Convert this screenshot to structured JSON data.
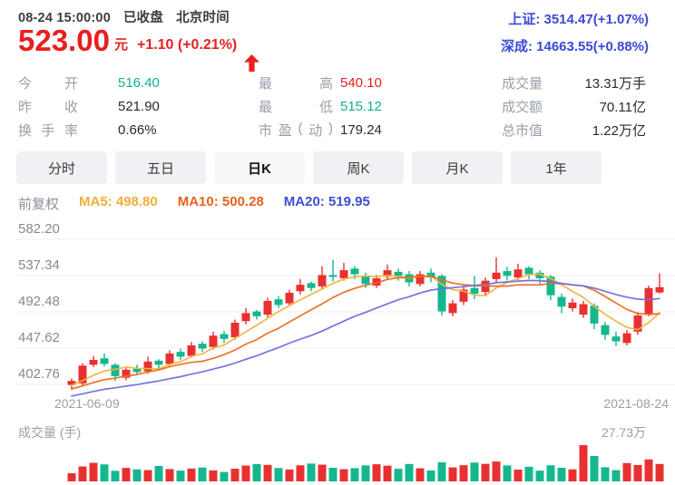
{
  "header": {
    "time": "08-24 15:00:00",
    "status": "已收盘",
    "timezone": "北京时间",
    "price": "523.00",
    "currency": "元",
    "change": "+1.10 (+0.21%)",
    "arrow_icon": "up-arrow",
    "indices": [
      {
        "label": "上证",
        "value": "3514.47(+1.07%)",
        "text": "上证: 3514.47(+1.07%)"
      },
      {
        "label": "深成",
        "value": "14663.55(+0.88%)",
        "text": "深成: 14663.55(+0.88%)"
      }
    ]
  },
  "stats": {
    "columns": [
      {
        "rows": [
          {
            "label": "今开",
            "value": "516.40",
            "color": "green"
          },
          {
            "label": "昨收",
            "value": "521.90",
            "color": "dark"
          },
          {
            "label": "换手率",
            "value": "0.66%",
            "color": "dark"
          }
        ]
      },
      {
        "rows": [
          {
            "label": "最高",
            "value": "540.10",
            "color": "red"
          },
          {
            "label": "最低",
            "value": "515.12",
            "color": "green"
          },
          {
            "label": "市盈(动)",
            "value": "179.24",
            "color": "dark"
          }
        ]
      },
      {
        "rows": [
          {
            "label": "成交量",
            "value": "13.31万手",
            "color": "dark"
          },
          {
            "label": "成交额",
            "value": "70.11亿",
            "color": "dark"
          },
          {
            "label": "总市值",
            "value": "1.22万亿",
            "color": "dark"
          }
        ]
      }
    ]
  },
  "tabs": [
    {
      "label": "分时",
      "active": false
    },
    {
      "label": "五日",
      "active": false
    },
    {
      "label": "日K",
      "active": true
    },
    {
      "label": "周K",
      "active": false
    },
    {
      "label": "月K",
      "active": false
    },
    {
      "label": "1年",
      "active": false
    }
  ],
  "legend": {
    "adjust": "前复权",
    "items": [
      {
        "text": "MA5: 498.80",
        "color": "#efae3a"
      },
      {
        "text": "MA10: 500.28",
        "color": "#e8611c"
      },
      {
        "text": "MA20: 519.95",
        "color": "#3f4fd0"
      }
    ]
  },
  "volume_panel": {
    "title": "成交量 (手)",
    "max_label": "27.73万"
  },
  "chart_data": {
    "type": "candlestick",
    "title": "日K 前复权",
    "y_ticks": [
      "582.20",
      "537.34",
      "492.48",
      "447.62",
      "402.76"
    ],
    "ylim": [
      402.76,
      582.2
    ],
    "x_labels": [
      "2021-06-09",
      "2021-08-24"
    ],
    "grid": true,
    "up_color": "#e93030",
    "down_color": "#15b78e",
    "ma_series": [
      {
        "name": "MA5",
        "period": 5,
        "last": 498.8,
        "color": "#f0b43c"
      },
      {
        "name": "MA10",
        "period": 10,
        "last": 500.28,
        "color": "#ed6a1f"
      },
      {
        "name": "MA20",
        "period": 20,
        "last": 519.95,
        "color": "#6a6fe0"
      }
    ],
    "volume_max": 27.73,
    "candles_format": [
      "open",
      "close",
      "low",
      "high",
      "volume_wan"
    ],
    "candles": [
      [
        402,
        407,
        396,
        410,
        6.2
      ],
      [
        404,
        426,
        401,
        429,
        11.4
      ],
      [
        427,
        433,
        424,
        438,
        14.2
      ],
      [
        435,
        428,
        425,
        441,
        13.0
      ],
      [
        427,
        413,
        407,
        429,
        8.1
      ],
      [
        411,
        421,
        408,
        424,
        10.3
      ],
      [
        422,
        418,
        414,
        427,
        9.2
      ],
      [
        419,
        431,
        416,
        437,
        8.6
      ],
      [
        432,
        427,
        423,
        434,
        11.8
      ],
      [
        428,
        441,
        426,
        445,
        9.4
      ],
      [
        443,
        437,
        433,
        447,
        8.2
      ],
      [
        438,
        451,
        436,
        455,
        9.8
      ],
      [
        453,
        447,
        443,
        456,
        10.6
      ],
      [
        449,
        463,
        446,
        468,
        8.4
      ],
      [
        465,
        459,
        454,
        469,
        7.2
      ],
      [
        461,
        479,
        458,
        483,
        9.7
      ],
      [
        481,
        491,
        477,
        497,
        12.1
      ],
      [
        493,
        487,
        483,
        495,
        13.2
      ],
      [
        489,
        506,
        486,
        510,
        12.6
      ],
      [
        508,
        501,
        497,
        512,
        10.2
      ],
      [
        503,
        516,
        500,
        520,
        9.1
      ],
      [
        518,
        526,
        514,
        533,
        12.3
      ],
      [
        528,
        522,
        518,
        530,
        13.6
      ],
      [
        524,
        538,
        521,
        549,
        12.8
      ],
      [
        538,
        536,
        530,
        557,
        10.4
      ],
      [
        534,
        544,
        531,
        553,
        9.3
      ],
      [
        546,
        539,
        533,
        549,
        10.1
      ],
      [
        537,
        527,
        522,
        541,
        12.2
      ],
      [
        525,
        534,
        522,
        538,
        13.1
      ],
      [
        536,
        544,
        532,
        551,
        12.0
      ],
      [
        542,
        537,
        531,
        546,
        9.6
      ],
      [
        539,
        529,
        524,
        543,
        13.3
      ],
      [
        527,
        539,
        524,
        543,
        10.0
      ],
      [
        541,
        535,
        529,
        546,
        8.3
      ],
      [
        537,
        493,
        488,
        539,
        14.6
      ],
      [
        491,
        503,
        487,
        507,
        10.7
      ],
      [
        505,
        520,
        501,
        524,
        12.4
      ],
      [
        522,
        515,
        508,
        537,
        14.4
      ],
      [
        517,
        531,
        513,
        535,
        13.4
      ],
      [
        533,
        541,
        529,
        560,
        15.2
      ],
      [
        543,
        537,
        531,
        548,
        12.2
      ],
      [
        535,
        545,
        532,
        552,
        9.0
      ],
      [
        547,
        539,
        533,
        549,
        11.2
      ],
      [
        541,
        534,
        527,
        544,
        8.2
      ],
      [
        536,
        513,
        507,
        538,
        12.3
      ],
      [
        511,
        499,
        491,
        515,
        10.4
      ],
      [
        497,
        504,
        493,
        509,
        9.2
      ],
      [
        489,
        502,
        485,
        506,
        27.73
      ],
      [
        500,
        478,
        471,
        503,
        19.4
      ],
      [
        476,
        464,
        458,
        480,
        10.8
      ],
      [
        462,
        456,
        450,
        468,
        8.6
      ],
      [
        454,
        466,
        451,
        470,
        14.0
      ],
      [
        468,
        488,
        464,
        492,
        12.5
      ],
      [
        490,
        521.9,
        487,
        525,
        16.8
      ],
      [
        516.4,
        523,
        515.12,
        540.1,
        13.31
      ]
    ]
  }
}
